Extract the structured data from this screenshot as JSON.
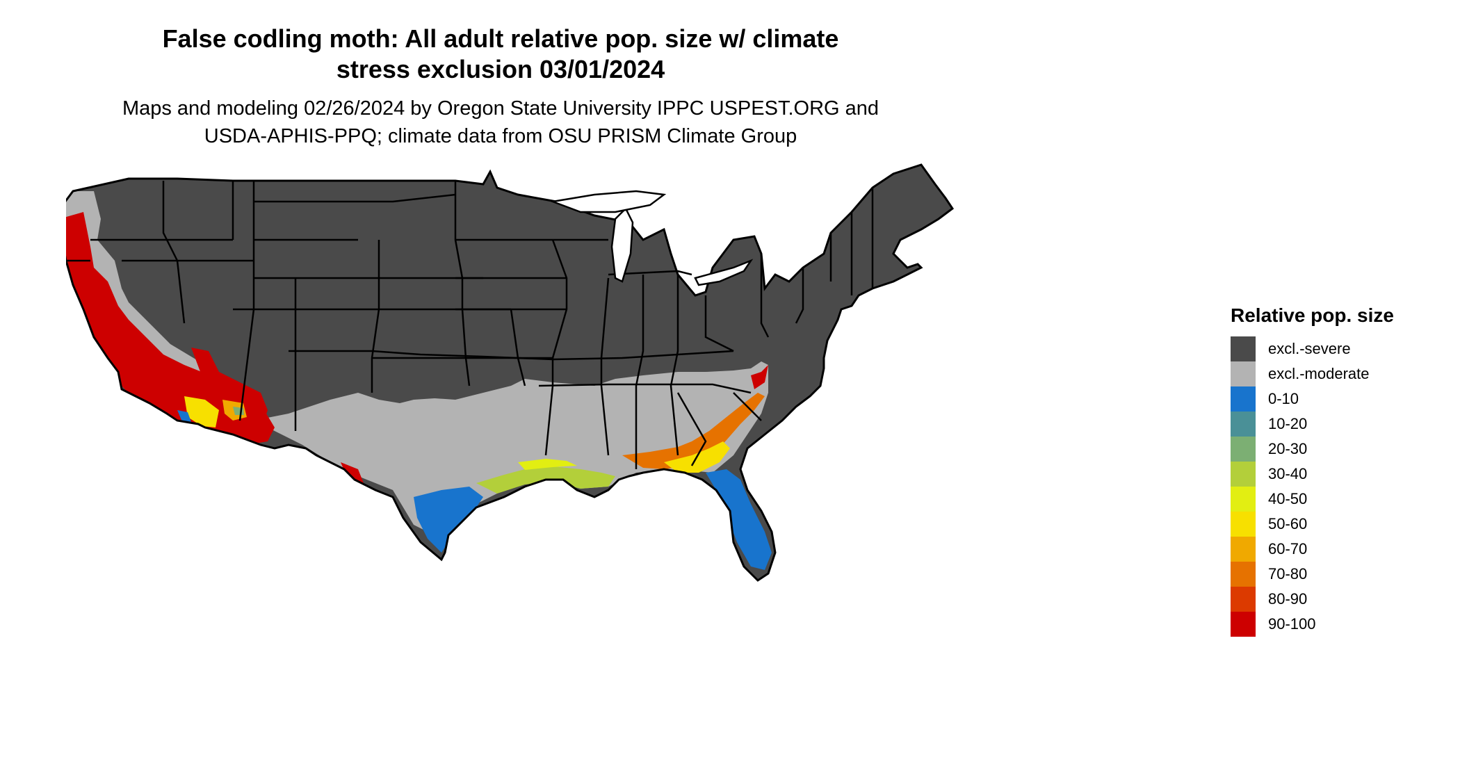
{
  "header": {
    "title_line1": "False codling moth: All adult relative pop. size w/ climate",
    "title_line2": "stress exclusion 03/01/2024",
    "subtitle_line1": "Maps and modeling 02/26/2024 by Oregon State University IPPC USPEST.ORG and",
    "subtitle_line2": "USDA-APHIS-PPQ; climate data from OSU PRISM Climate Group"
  },
  "legend": {
    "title": "Relative pop. size",
    "items": [
      {
        "label": "excl.-severe",
        "color": "#4a4a4a"
      },
      {
        "label": "excl.-moderate",
        "color": "#b3b3b3"
      },
      {
        "label": "0-10",
        "color": "#1874cd"
      },
      {
        "label": "10-20",
        "color": "#4a9097"
      },
      {
        "label": "20-30",
        "color": "#7caf73"
      },
      {
        "label": "30-40",
        "color": "#b3cf3a"
      },
      {
        "label": "40-50",
        "color": "#e2ee12"
      },
      {
        "label": "50-60",
        "color": "#f7e000"
      },
      {
        "label": "60-70",
        "color": "#f0a900"
      },
      {
        "label": "70-80",
        "color": "#e67200"
      },
      {
        "label": "80-90",
        "color": "#dc3a00"
      },
      {
        "label": "90-100",
        "color": "#cd0000"
      }
    ]
  }
}
